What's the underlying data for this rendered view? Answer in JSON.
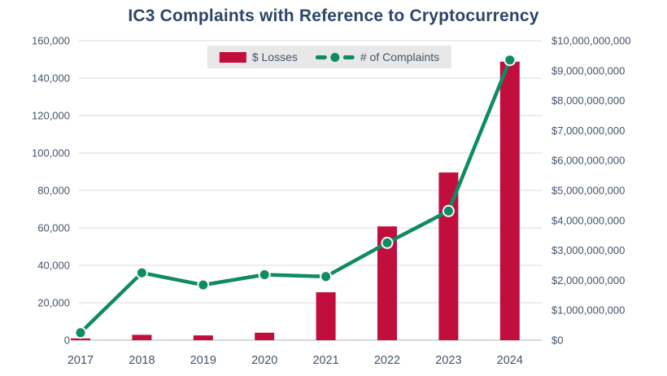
{
  "colors": {
    "bar": "#c20e3c",
    "line": "#0e8b62",
    "marker_ring": "#fafafa",
    "title_text": "#2f4468",
    "axis_text": "#44546a",
    "gridline": "#dce0e9",
    "axis_line": "#c5cbd6",
    "legend_bg": "#e8e8e8",
    "background": "#ffffff"
  },
  "legend": {
    "losses_label": "$ Losses",
    "complaints_label": "# of Complaints",
    "losses_swatch_icon": "red-rectangle-swatch",
    "complaints_marker_icon": "green-dash-dot-line-marker"
  },
  "chart_data": {
    "type": "combo",
    "title": "IC3 Complaints with Reference to Cryptocurrency",
    "xlabel": "",
    "ylabel_left": "",
    "ylabel_right": "",
    "grid": true,
    "legend_position": "top",
    "categories": [
      "2017",
      "2018",
      "2019",
      "2020",
      "2021",
      "2022",
      "2023",
      "2024"
    ],
    "series": [
      {
        "name": "$ Losses",
        "type": "bar",
        "axis": "right",
        "color": "#c20e3c",
        "values": [
          60000000,
          180000000,
          160000000,
          250000000,
          1600000000,
          3800000000,
          5600000000,
          9300000000
        ]
      },
      {
        "name": "# of Complaints",
        "type": "line",
        "axis": "left",
        "color": "#0e8b62",
        "values": [
          4000,
          36000,
          29500,
          35000,
          34000,
          52000,
          69000,
          149700
        ]
      }
    ],
    "left_axis": {
      "min": 0,
      "max": 160000,
      "step": 20000,
      "tick_labels": [
        "0",
        "20,000",
        "40,000",
        "60,000",
        "80,000",
        "100,000",
        "120,000",
        "140,000",
        "160,000"
      ]
    },
    "right_axis": {
      "min": 0,
      "max": 10000000000,
      "step": 1000000000,
      "tick_labels": [
        "$0",
        "$1,000,000,000",
        "$2,000,000,000",
        "$3,000,000,000",
        "$4,000,000,000",
        "$5,000,000,000",
        "$6,000,000,000",
        "$7,000,000,000",
        "$8,000,000,000",
        "$9,000,000,000",
        "$10,000,000,000"
      ]
    }
  }
}
